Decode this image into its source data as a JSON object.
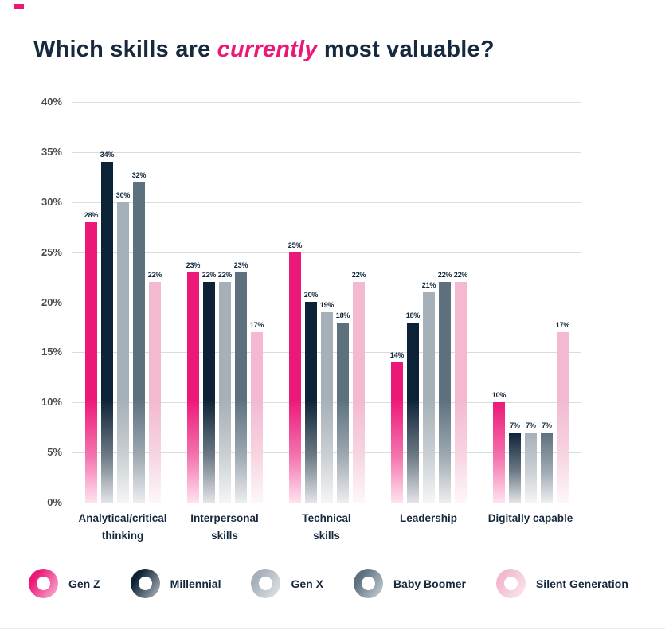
{
  "page": {
    "title_prefix": "Which skills are ",
    "title_highlight": "currently",
    "title_suffix": " most valuable?"
  },
  "colors": {
    "title_navy": "#16293E",
    "highlight_pink": "#EC1878",
    "gridline_gray": "#DCDCDC",
    "axis_label_gray": "#4B4B4B",
    "data_label_navy": "#12263A"
  },
  "chart_data": {
    "type": "bar",
    "title": "Which skills are currently most valuable?",
    "categories": [
      "Analytical/critical thinking",
      "Interpersonal skills",
      "Technical skills",
      "Leadership",
      "Digitally capable"
    ],
    "category_labels": [
      "Analytical/critical\nthinking",
      "Interpersonal\nskills",
      "Technical\nskills",
      "Leadership",
      "Digitally capable"
    ],
    "series": [
      {
        "name": "Gen Z",
        "color": "#EC1878",
        "values": [
          28,
          23,
          25,
          14,
          10
        ]
      },
      {
        "name": "Millennial",
        "color": "#0C2236",
        "values": [
          34,
          22,
          20,
          18,
          7
        ]
      },
      {
        "name": "Gen X",
        "color": "#A6B0B8",
        "values": [
          30,
          22,
          19,
          21,
          7
        ]
      },
      {
        "name": "Baby Boomer",
        "color": "#5D707E",
        "values": [
          32,
          23,
          18,
          22,
          7
        ]
      },
      {
        "name": "Silent Generation",
        "color": "#F2B9D0",
        "values": [
          22,
          17,
          22,
          22,
          17
        ]
      }
    ],
    "xlabel": "",
    "ylabel": "",
    "ylim": [
      0,
      40
    ],
    "ytick_step": 5,
    "ytick_suffix": "%",
    "data_label_suffix": "%",
    "grid": true,
    "bar_style": "gradient fade to white at baseline",
    "legend_position": "bottom",
    "legend_marker": "ring"
  }
}
